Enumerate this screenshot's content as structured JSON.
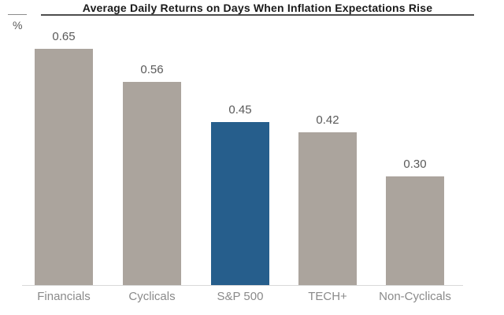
{
  "chart_data": {
    "type": "bar",
    "title": "Average Daily Returns on Days When Inflation Expectations Rise",
    "unit_label": "%",
    "categories": [
      "Financials",
      "Cyclicals",
      "S&P 500",
      "TECH+",
      "Non-Cyclicals"
    ],
    "values": [
      0.65,
      0.56,
      0.45,
      0.42,
      0.3
    ],
    "value_labels": [
      "0.65",
      "0.56",
      "0.45",
      "0.42",
      "0.30"
    ],
    "highlight_index": 2,
    "ylim": [
      0,
      0.7
    ],
    "grid": false,
    "legend": false,
    "colors": {
      "bar_default": "#ABA49D",
      "bar_highlight": "#265E8C",
      "value_label": "#595959",
      "category_label": "#8A8A8A",
      "title_text": "#1A1A1A",
      "title_rule": "#4D4D4D",
      "baseline": "#D9D9D9"
    }
  }
}
